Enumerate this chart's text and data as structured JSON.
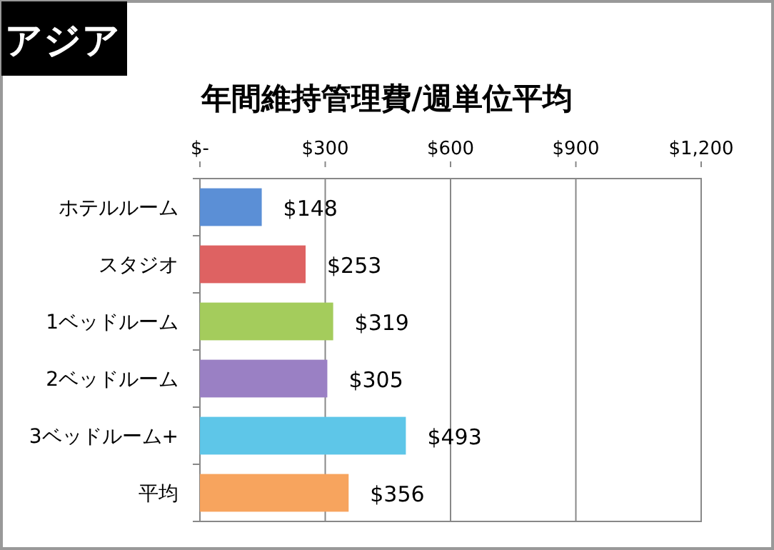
{
  "chart_data": {
    "type": "bar",
    "orientation": "horizontal",
    "title": "年間維持管理費/週単位平均",
    "annotations": [
      "アジア"
    ],
    "categories": [
      "ホテルルーム",
      "スタジオ",
      "1ベッドルーム",
      "2ベッドルーム",
      "3ベッドルーム+",
      "平均"
    ],
    "values": [
      148,
      253,
      319,
      305,
      493,
      356
    ],
    "value_labels": [
      "$148",
      "$253",
      "$319",
      "$305",
      "$493",
      "$356"
    ],
    "colors": [
      "#5b8fd6",
      "#de6262",
      "#a4cc5c",
      "#9a80c4",
      "#5ec6e8",
      "#f7a45e"
    ],
    "xlim": [
      0,
      1200
    ],
    "xticks": [
      {
        "value": 0,
        "label": "$-"
      },
      {
        "value": 300,
        "label": "$300"
      },
      {
        "value": 600,
        "label": "$600"
      },
      {
        "value": 900,
        "label": "$900"
      },
      {
        "value": 1200,
        "label": "$1,200"
      }
    ],
    "grid": "x"
  }
}
